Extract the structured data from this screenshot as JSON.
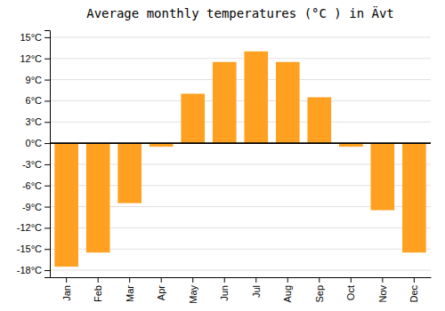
{
  "chart_data": {
    "type": "bar",
    "title": "Average monthly temperatures (°C ) in Ävt",
    "categories": [
      "Jan",
      "Feb",
      "Mar",
      "Apr",
      "May",
      "Jun",
      "Jul",
      "Aug",
      "Sep",
      "Oct",
      "Nov",
      "Dec"
    ],
    "values": [
      -17.5,
      -15.5,
      -8.5,
      -0.5,
      7.0,
      11.5,
      13.0,
      11.5,
      6.5,
      -0.5,
      -9.5,
      -15.5
    ],
    "color": "#FFA020",
    "ylim": [
      -19,
      16
    ],
    "yticks": [
      {
        "value": -18,
        "label": "-18°C"
      },
      {
        "value": -15,
        "label": "-15°C"
      },
      {
        "value": -12,
        "label": "-12°C"
      },
      {
        "value": -9,
        "label": "-9°C"
      },
      {
        "value": -6,
        "label": "-6°C"
      },
      {
        "value": -3,
        "label": "-3°C"
      },
      {
        "value": 0,
        "label": "0°C"
      },
      {
        "value": 3,
        "label": "3°C"
      },
      {
        "value": 6,
        "label": "6°C"
      },
      {
        "value": 9,
        "label": "9°C"
      },
      {
        "value": 12,
        "label": "12°C"
      },
      {
        "value": 15,
        "label": "15°C"
      }
    ],
    "grid": true
  }
}
